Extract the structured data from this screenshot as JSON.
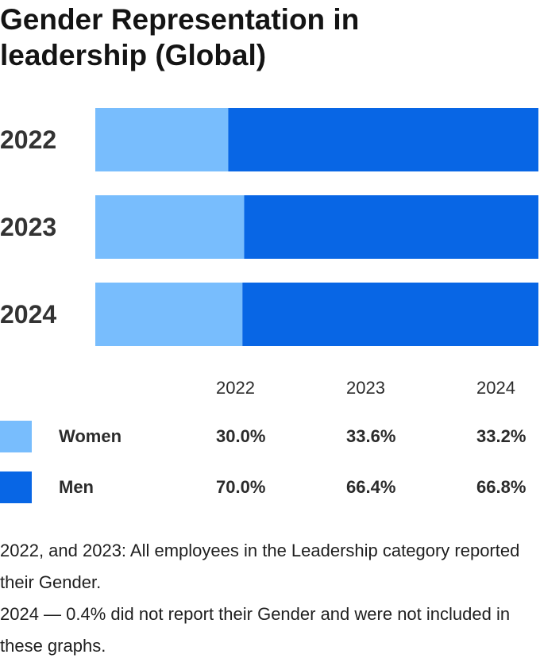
{
  "title": "Gender Representation in leadership (Global)",
  "colors": {
    "women": "#78BDFD",
    "men": "#0866E5"
  },
  "chart_data": {
    "type": "bar",
    "stacked": true,
    "orientation": "horizontal",
    "categories": [
      "2022",
      "2023",
      "2024"
    ],
    "series": [
      {
        "name": "Women",
        "values": [
          30.0,
          33.6,
          33.2
        ]
      },
      {
        "name": "Men",
        "values": [
          70.0,
          66.4,
          66.8
        ]
      }
    ],
    "xlim": [
      0,
      100
    ],
    "grid": false
  },
  "table": {
    "headers": [
      "2022",
      "2023",
      "2024"
    ],
    "rows": [
      {
        "label": "Women",
        "values": [
          "30.0%",
          "33.6%",
          "33.2%"
        ]
      },
      {
        "label": "Men",
        "values": [
          "70.0%",
          "66.4%",
          "66.8%"
        ]
      }
    ]
  },
  "footnotes": [
    "2022, and 2023: All employees in the Leadership category reported their Gender.",
    "2024 — 0.4% did not report their Gender and were not included in these graphs."
  ]
}
